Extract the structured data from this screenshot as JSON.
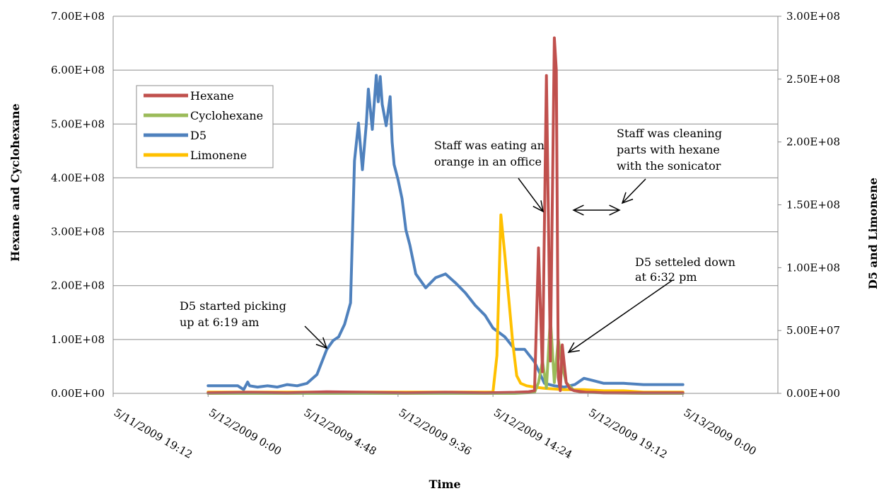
{
  "chart_data": {
    "type": "line",
    "xlabel": "Time",
    "ylabel_left": "Hexane and Cyclohexane",
    "ylabel_right": "D5 and Limonene",
    "ylim_left": [
      0,
      700000000
    ],
    "ylim_right": [
      0,
      300000000
    ],
    "xlim": [
      "5/11/2009 19:12",
      "5/13/2009 4:48"
    ],
    "left_tick_labels": [
      "0.00E+00",
      "1.00E+08",
      "2.00E+08",
      "3.00E+08",
      "4.00E+08",
      "5.00E+08",
      "6.00E+08",
      "7.00E+08"
    ],
    "right_tick_labels": [
      "0.00E+00",
      "5.00E+07",
      "1.00E+08",
      "1.50E+08",
      "2.00E+08",
      "2.50E+08",
      "3.00E+08"
    ],
    "x_tick_labels": [
      "5/11/2009 19:12",
      "5/12/2009 0:00",
      "5/12/2009 4:48",
      "5/12/2009 9:36",
      "5/12/2009 14:24",
      "5/12/2009 19:12",
      "5/13/2009 0:00"
    ],
    "grid": true,
    "legend_position": "top-left",
    "series": [
      {
        "name": "Hexane",
        "axis": "left",
        "color": "#c0504d",
        "x": [
          "5/12/2009 0:00",
          "5/12/2009 2:00",
          "5/12/2009 4:00",
          "5/12/2009 6:00",
          "5/12/2009 8:00",
          "5/12/2009 10:00",
          "5/12/2009 12:00",
          "5/12/2009 14:00",
          "5/12/2009 15:30",
          "5/12/2009 16:12",
          "5/12/2009 16:30",
          "5/12/2009 16:42",
          "5/12/2009 16:54",
          "5/12/2009 17:06",
          "5/12/2009 17:18",
          "5/12/2009 17:30",
          "5/12/2009 17:36",
          "5/12/2009 17:42",
          "5/12/2009 17:48",
          "5/12/2009 17:54",
          "5/12/2009 18:06",
          "5/12/2009 18:18",
          "5/12/2009 18:30",
          "5/12/2009 18:42",
          "5/12/2009 18:54",
          "5/12/2009 19:06",
          "5/12/2009 19:18",
          "5/12/2009 19:30",
          "5/12/2009 20:00",
          "5/12/2009 21:00",
          "5/12/2009 22:00",
          "5/13/2009 0:00"
        ],
        "y": [
          1000000,
          2000000,
          1000000,
          3000000,
          2000000,
          1000000,
          2000000,
          1000000,
          2000000,
          3000000,
          5000000,
          270000000,
          40000000,
          590000000,
          60000000,
          660000000,
          600000000,
          30000000,
          5000000,
          90000000,
          20000000,
          8000000,
          5000000,
          4000000,
          3000000,
          2000000,
          2000000,
          2000000,
          1000000,
          1000000,
          1000000,
          1000000
        ]
      },
      {
        "name": "Cyclohexane",
        "axis": "left",
        "color": "#9bbb59",
        "x": [
          "5/12/2009 0:00",
          "5/12/2009 4:00",
          "5/12/2009 8:00",
          "5/12/2009 12:00",
          "5/12/2009 15:30",
          "5/12/2009 16:30",
          "5/12/2009 16:42",
          "5/12/2009 16:54",
          "5/12/2009 17:06",
          "5/12/2009 17:18",
          "5/12/2009 17:30",
          "5/12/2009 17:42",
          "5/12/2009 17:54",
          "5/12/2009 18:06",
          "5/12/2009 18:30",
          "5/12/2009 19:00",
          "5/12/2009 20:00",
          "5/12/2009 22:00",
          "5/13/2009 0:00"
        ],
        "y": [
          0,
          0,
          0,
          0,
          0,
          2000000,
          20000000,
          60000000,
          10000000,
          140000000,
          20000000,
          100000000,
          50000000,
          20000000,
          5000000,
          2000000,
          1000000,
          0,
          0
        ]
      },
      {
        "name": "D5",
        "axis": "right",
        "color": "#4f81bd",
        "x": [
          "5/12/2009 0:00",
          "5/12/2009 0:30",
          "5/12/2009 1:00",
          "5/12/2009 1:30",
          "5/12/2009 1:48",
          "5/12/2009 2:00",
          "5/12/2009 2:06",
          "5/12/2009 2:30",
          "5/12/2009 3:00",
          "5/12/2009 3:30",
          "5/12/2009 4:00",
          "5/12/2009 4:30",
          "5/12/2009 5:00",
          "5/12/2009 5:30",
          "5/12/2009 6:00",
          "5/12/2009 6:19",
          "5/12/2009 6:36",
          "5/12/2009 6:54",
          "5/12/2009 7:12",
          "5/12/2009 7:24",
          "5/12/2009 7:36",
          "5/12/2009 7:48",
          "5/12/2009 8:00",
          "5/12/2009 8:06",
          "5/12/2009 8:18",
          "5/12/2009 8:30",
          "5/12/2009 8:36",
          "5/12/2009 8:42",
          "5/12/2009 8:48",
          "5/12/2009 9:00",
          "5/12/2009 9:12",
          "5/12/2009 9:18",
          "5/12/2009 9:24",
          "5/12/2009 9:36",
          "5/12/2009 9:48",
          "5/12/2009 10:00",
          "5/12/2009 10:12",
          "5/12/2009 10:30",
          "5/12/2009 11:00",
          "5/12/2009 11:30",
          "5/12/2009 12:00",
          "5/12/2009 12:30",
          "5/12/2009 13:00",
          "5/12/2009 13:30",
          "5/12/2009 14:00",
          "5/12/2009 14:24",
          "5/12/2009 15:00",
          "5/12/2009 15:30",
          "5/12/2009 16:00",
          "5/12/2009 16:30",
          "5/12/2009 17:00",
          "5/12/2009 17:30",
          "5/12/2009 18:00",
          "5/12/2009 18:32",
          "5/12/2009 19:00",
          "5/12/2009 19:30",
          "5/12/2009 20:00",
          "5/12/2009 21:00",
          "5/12/2009 22:00",
          "5/12/2009 23:00",
          "5/13/2009 0:00"
        ],
        "y": [
          6000000,
          6000000,
          6000000,
          6000000,
          3000000,
          9000000,
          6000000,
          5000000,
          6000000,
          5000000,
          7000000,
          6000000,
          8000000,
          15000000,
          35000000,
          42000000,
          45000000,
          55000000,
          72000000,
          185000000,
          215000000,
          178000000,
          215000000,
          242000000,
          210000000,
          253000000,
          232000000,
          252000000,
          230000000,
          213000000,
          236000000,
          200000000,
          182000000,
          170000000,
          155000000,
          130000000,
          118000000,
          95000000,
          84000000,
          92000000,
          95000000,
          88000000,
          80000000,
          70000000,
          62000000,
          52000000,
          45000000,
          35000000,
          35000000,
          25000000,
          8000000,
          6000000,
          5000000,
          7000000,
          12000000,
          10000000,
          8000000,
          8000000,
          7000000,
          7000000,
          7000000
        ]
      },
      {
        "name": "Limonene",
        "axis": "right",
        "color": "#ffc000",
        "x": [
          "5/12/2009 0:00",
          "5/12/2009 3:00",
          "5/12/2009 6:00",
          "5/12/2009 9:00",
          "5/12/2009 12:00",
          "5/12/2009 14:00",
          "5/12/2009 14:24",
          "5/12/2009 14:36",
          "5/12/2009 14:48",
          "5/12/2009 15:00",
          "5/12/2009 15:12",
          "5/12/2009 15:24",
          "5/12/2009 15:36",
          "5/12/2009 15:48",
          "5/12/2009 16:06",
          "5/12/2009 16:30",
          "5/12/2009 17:00",
          "5/12/2009 18:00",
          "5/12/2009 19:00",
          "5/12/2009 20:00",
          "5/12/2009 21:00",
          "5/12/2009 22:00",
          "5/13/2009 0:00"
        ],
        "y": [
          1000000,
          1000000,
          1000000,
          1000000,
          1000000,
          1000000,
          1000000,
          30000000,
          142000000,
          110000000,
          75000000,
          40000000,
          14000000,
          8000000,
          6000000,
          5000000,
          4000000,
          3000000,
          3000000,
          2000000,
          2000000,
          1000000,
          1000000
        ]
      }
    ],
    "annotations": [
      {
        "lines": [
          "D5 started picking",
          "up at 6:19 am"
        ]
      },
      {
        "lines": [
          "Staff was eating an",
          "orange in an office"
        ]
      },
      {
        "lines": [
          "Staff was cleaning",
          "parts with hexane",
          "with the sonicator"
        ]
      },
      {
        "lines": [
          "D5 setteled down",
          "at 6:32 pm"
        ]
      }
    ]
  }
}
